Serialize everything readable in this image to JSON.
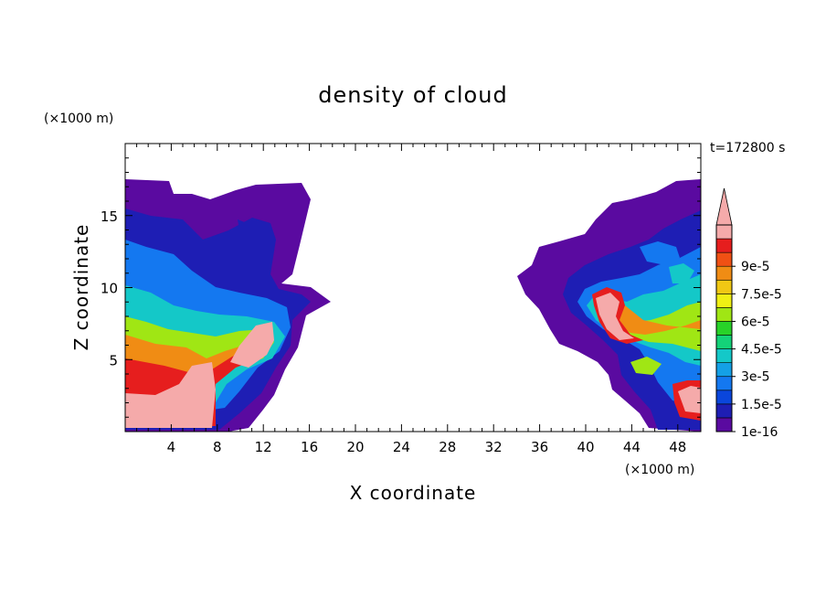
{
  "chart_data": {
    "type": "heatmap",
    "title": "density of cloud",
    "time_label": "t=172800 s",
    "x_label": "X coordinate",
    "y_label": "Z coordinate",
    "x_unit": "(×1000 m)",
    "y_unit": "(×1000 m)",
    "x_range": [
      0,
      50
    ],
    "y_range": [
      0,
      20
    ],
    "x_ticks": [
      "4",
      "8",
      "12",
      "16",
      "20",
      "24",
      "28",
      "32",
      "36",
      "40",
      "44",
      "48"
    ],
    "y_ticks": [
      "5",
      "10",
      "15"
    ],
    "colorbar": {
      "labels": [
        "1e-16",
        "1.5e-5",
        "3e-5",
        "4.5e-5",
        "6e-5",
        "7.5e-5",
        "9e-5"
      ],
      "colors": [
        "#5a0aa0",
        "#1e1eb4",
        "#0a46dc",
        "#1478f0",
        "#14a0e6",
        "#14c8c8",
        "#14d278",
        "#28d228",
        "#a0e614",
        "#f0f014",
        "#f0c814",
        "#f08c14",
        "#f05014",
        "#e61e1e",
        "#f5aaaa"
      ],
      "overflow_color": "#f5aaaa"
    }
  }
}
